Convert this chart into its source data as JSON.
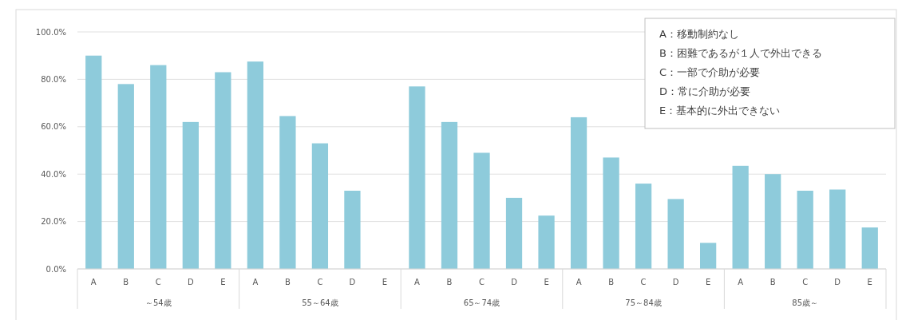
{
  "chart_data": {
    "type": "bar",
    "categories": [
      "A",
      "B",
      "C",
      "D",
      "E",
      "A",
      "B",
      "C",
      "D",
      "E",
      "A",
      "B",
      "C",
      "D",
      "E",
      "A",
      "B",
      "C",
      "D",
      "E",
      "A",
      "B",
      "C",
      "D",
      "E"
    ],
    "values": [
      90,
      78,
      86,
      62,
      83,
      87.5,
      64.5,
      53,
      33,
      null,
      77,
      62,
      49,
      30,
      22.5,
      64,
      47,
      36,
      29.5,
      11,
      43.5,
      40,
      33,
      33.5,
      17.5
    ],
    "color": "#8ecbdb",
    "ylim": [
      0,
      100
    ],
    "yticks": [
      {
        "value": 0,
        "label": "0.0%"
      },
      {
        "value": 20,
        "label": "20.0%"
      },
      {
        "value": 40,
        "label": "40.0%"
      },
      {
        "value": 60,
        "label": "60.0%"
      },
      {
        "value": 80,
        "label": "80.0%"
      },
      {
        "value": 100,
        "label": "100.0%"
      }
    ],
    "grid": "y",
    "annotations": [
      "～54歳",
      "55～64歳",
      "65～74歳",
      "75～84歳",
      "85歳～",
      "A：移動制約なし",
      "B：困難であるが１人で外出できる",
      "C：一部で介助が必要",
      "D：常に介助が必要",
      "E：基本的に外出できない"
    ]
  }
}
